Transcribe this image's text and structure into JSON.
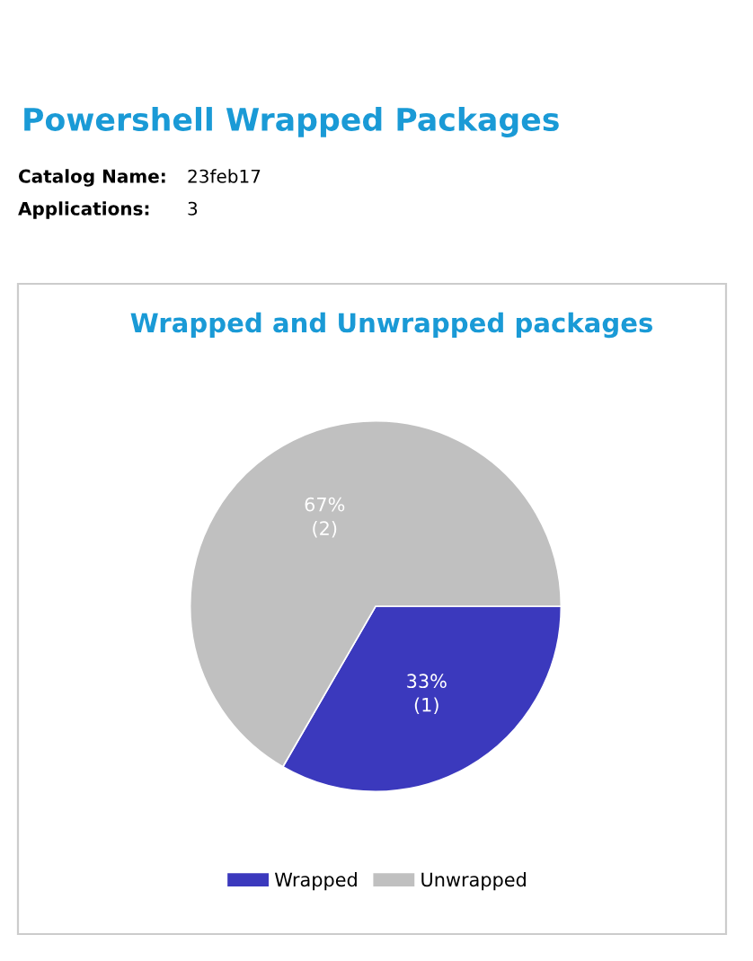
{
  "chart_data": {
    "type": "pie",
    "title": "Wrapped and Unwrapped packages",
    "annotations": [
      "Powershell Wrapped Packages",
      "Catalog Name:",
      "23feb17",
      "Applications:",
      "3"
    ],
    "categories": [
      "Wrapped",
      "Unwrapped"
    ],
    "values": [
      1,
      2
    ],
    "value_labels": [
      "33%\n(1)",
      "67%\n(2)"
    ],
    "colors": [
      "#3b39bd",
      "#c0c0c0"
    ],
    "legend": "bottom"
  }
}
